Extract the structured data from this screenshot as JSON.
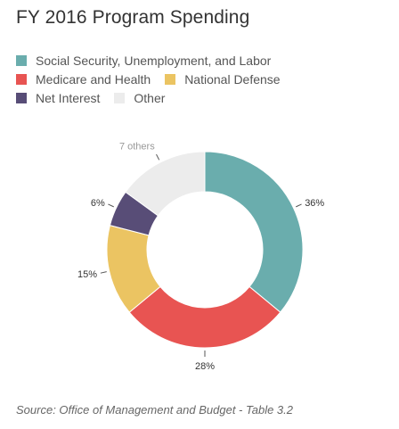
{
  "title": "FY 2016 Program Spending",
  "source": "Source: Office of Management and Budget - Table 3.2",
  "chart_data": {
    "type": "pie",
    "donut": true,
    "title": "FY 2016 Program Spending",
    "legend_position": "top",
    "slices": [
      {
        "name": "Social Security, Unemployment, and Labor",
        "value": 36,
        "label": "36%",
        "color": "#6aadad"
      },
      {
        "name": "Medicare and Health",
        "value": 28,
        "label": "28%",
        "color": "#e85452"
      },
      {
        "name": "National Defense",
        "value": 15,
        "label": "15%",
        "color": "#ebc462"
      },
      {
        "name": "Net Interest",
        "value": 6,
        "label": "6%",
        "color": "#584d77"
      },
      {
        "name": "Other",
        "value": 15,
        "label": "7 others",
        "color": "#ececec"
      }
    ]
  }
}
